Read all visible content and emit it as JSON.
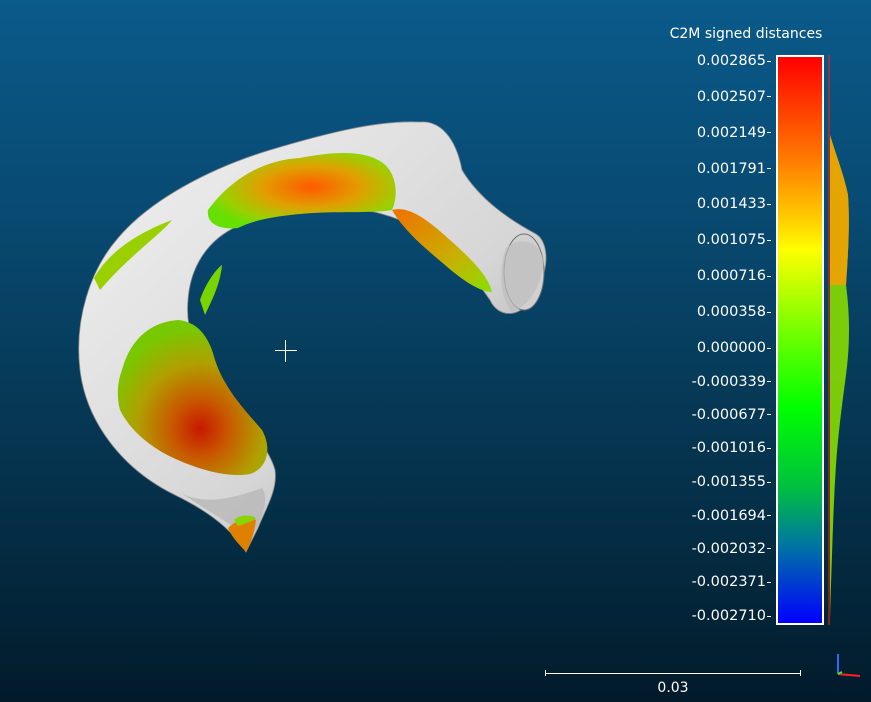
{
  "viewer": {
    "scale_title": "C2M signed distances",
    "scale_bar_label": "0.03",
    "colorbar_ticks": [
      "0.002865",
      "0.002507",
      "0.002149",
      "0.001791",
      "0.001433",
      "0.001075",
      "0.000716",
      "0.000358",
      "0.000000",
      "-0.000339",
      "-0.000677",
      "-0.001016",
      "-0.001355",
      "-0.001694",
      "-0.002032",
      "-0.002371",
      "-0.002710"
    ],
    "colors": {
      "background_top": "#0a5a8a",
      "background_bottom": "#021a2a",
      "max_color": "#ff0000",
      "zero_color": "#66ff00",
      "min_color": "#0000ff",
      "mesh_color": "#e6e6e6"
    }
  }
}
